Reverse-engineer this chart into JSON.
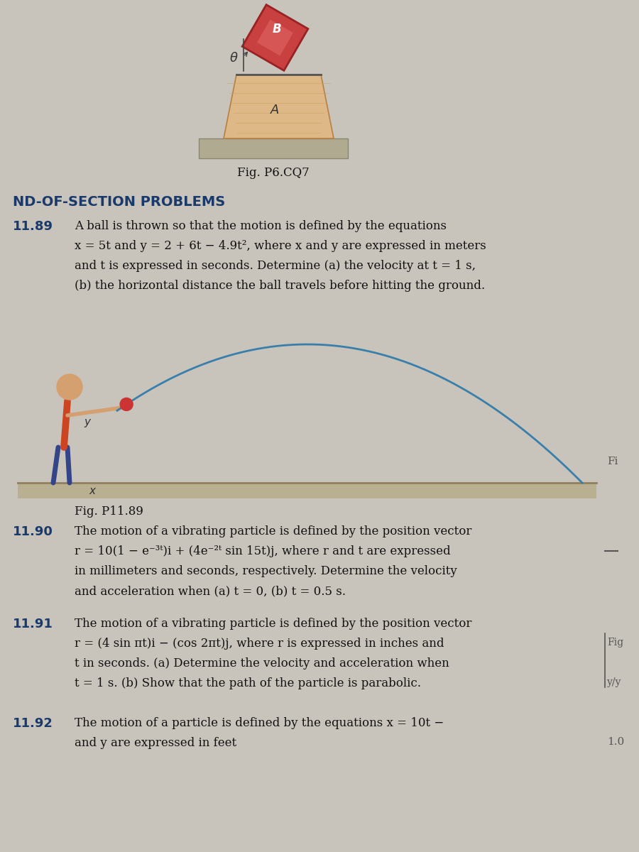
{
  "bg_color": "#c8c4bc",
  "page_bg": "#e0ddd8",
  "title_section": "ND-OF-SECTION PROBLEMS",
  "title_color": "#1a3a6b",
  "fig_p6cq7_caption": "Fig. P6.CQ7",
  "fig_p1189_caption": "Fig. P11.89",
  "problem_1189_num": "11.89",
  "problem_1189_line1": "A ball is thrown so that the motion is defined by the equations",
  "problem_1189_line2": "x = 5t and y = 2 + 6t − 4.9t², where x and y are expressed in meters",
  "problem_1189_line3": "and t is expressed in seconds. Determine (a) the velocity at t = 1 s,",
  "problem_1189_line4": "(b) the horizontal distance the ball travels before hitting the ground.",
  "problem_1190_num": "11.90",
  "problem_1190_line1": "The motion of a vibrating particle is defined by the position vector",
  "problem_1190_line2": "r = 10(1 − e⁻³ᵗ)i + (4e⁻²ᵗ sin 15t)j, where r and t are expressed",
  "problem_1190_line3": "in millimeters and seconds, respectively. Determine the velocity",
  "problem_1190_line4": "and acceleration when (a) t = 0, (b) t = 0.5 s.",
  "problem_1191_num": "11.91",
  "problem_1191_line1": "The motion of a vibrating particle is defined by the position vector",
  "problem_1191_line2": "r = (4 sin πt)i − (cos 2πt)j, where r is expressed in inches and",
  "problem_1191_line3": "t in seconds. (a) Determine the velocity and acceleration when",
  "problem_1191_line4": "t = 1 s. (b) Show that the path of the particle is parabolic.",
  "problem_1192_num": "11.92",
  "problem_1192_line1": "The motion of a particle is defined by the equations x = 10t −",
  "problem_1192_line2": "and y are expressed in feet",
  "body_text_color": "#111111",
  "problem_num_color": "#1a3a6b",
  "wood_light": "#deb887",
  "wood_mid": "#c8a060",
  "wood_dark": "#b88040",
  "ground_color": "#b8b090",
  "block_b_color": "#c84040",
  "trajectory_color": "#3a7faa",
  "ball_color": "#cc3333",
  "right_margin_color": "#555555"
}
